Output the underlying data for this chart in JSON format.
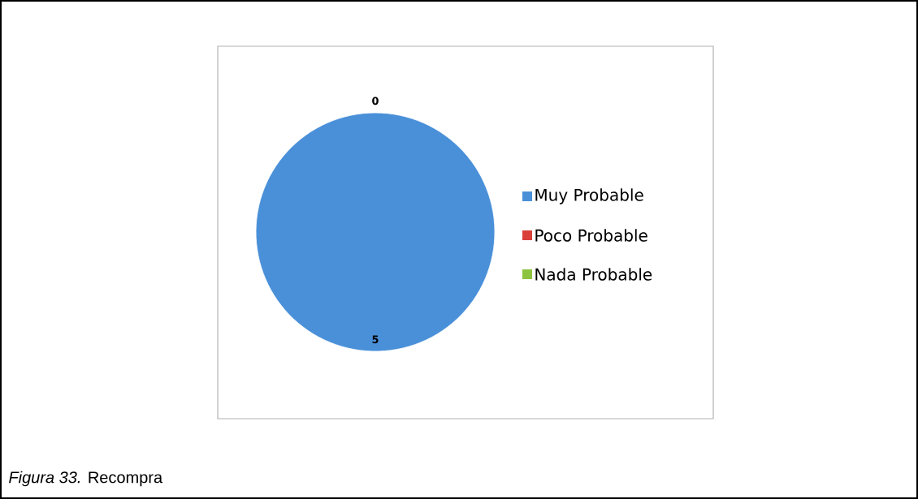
{
  "chart_data": {
    "type": "pie",
    "categories": [
      "Muy Probable",
      "Poco Probable",
      "Nada Probable"
    ],
    "values": [
      5,
      0,
      0
    ],
    "colors": [
      "#4a90d9",
      "#d9403a",
      "#8cc43f"
    ],
    "value_labels": [
      "5",
      "0",
      null
    ],
    "legend": "right",
    "annotations": [
      "*Figura 33.* Recompra"
    ]
  }
}
